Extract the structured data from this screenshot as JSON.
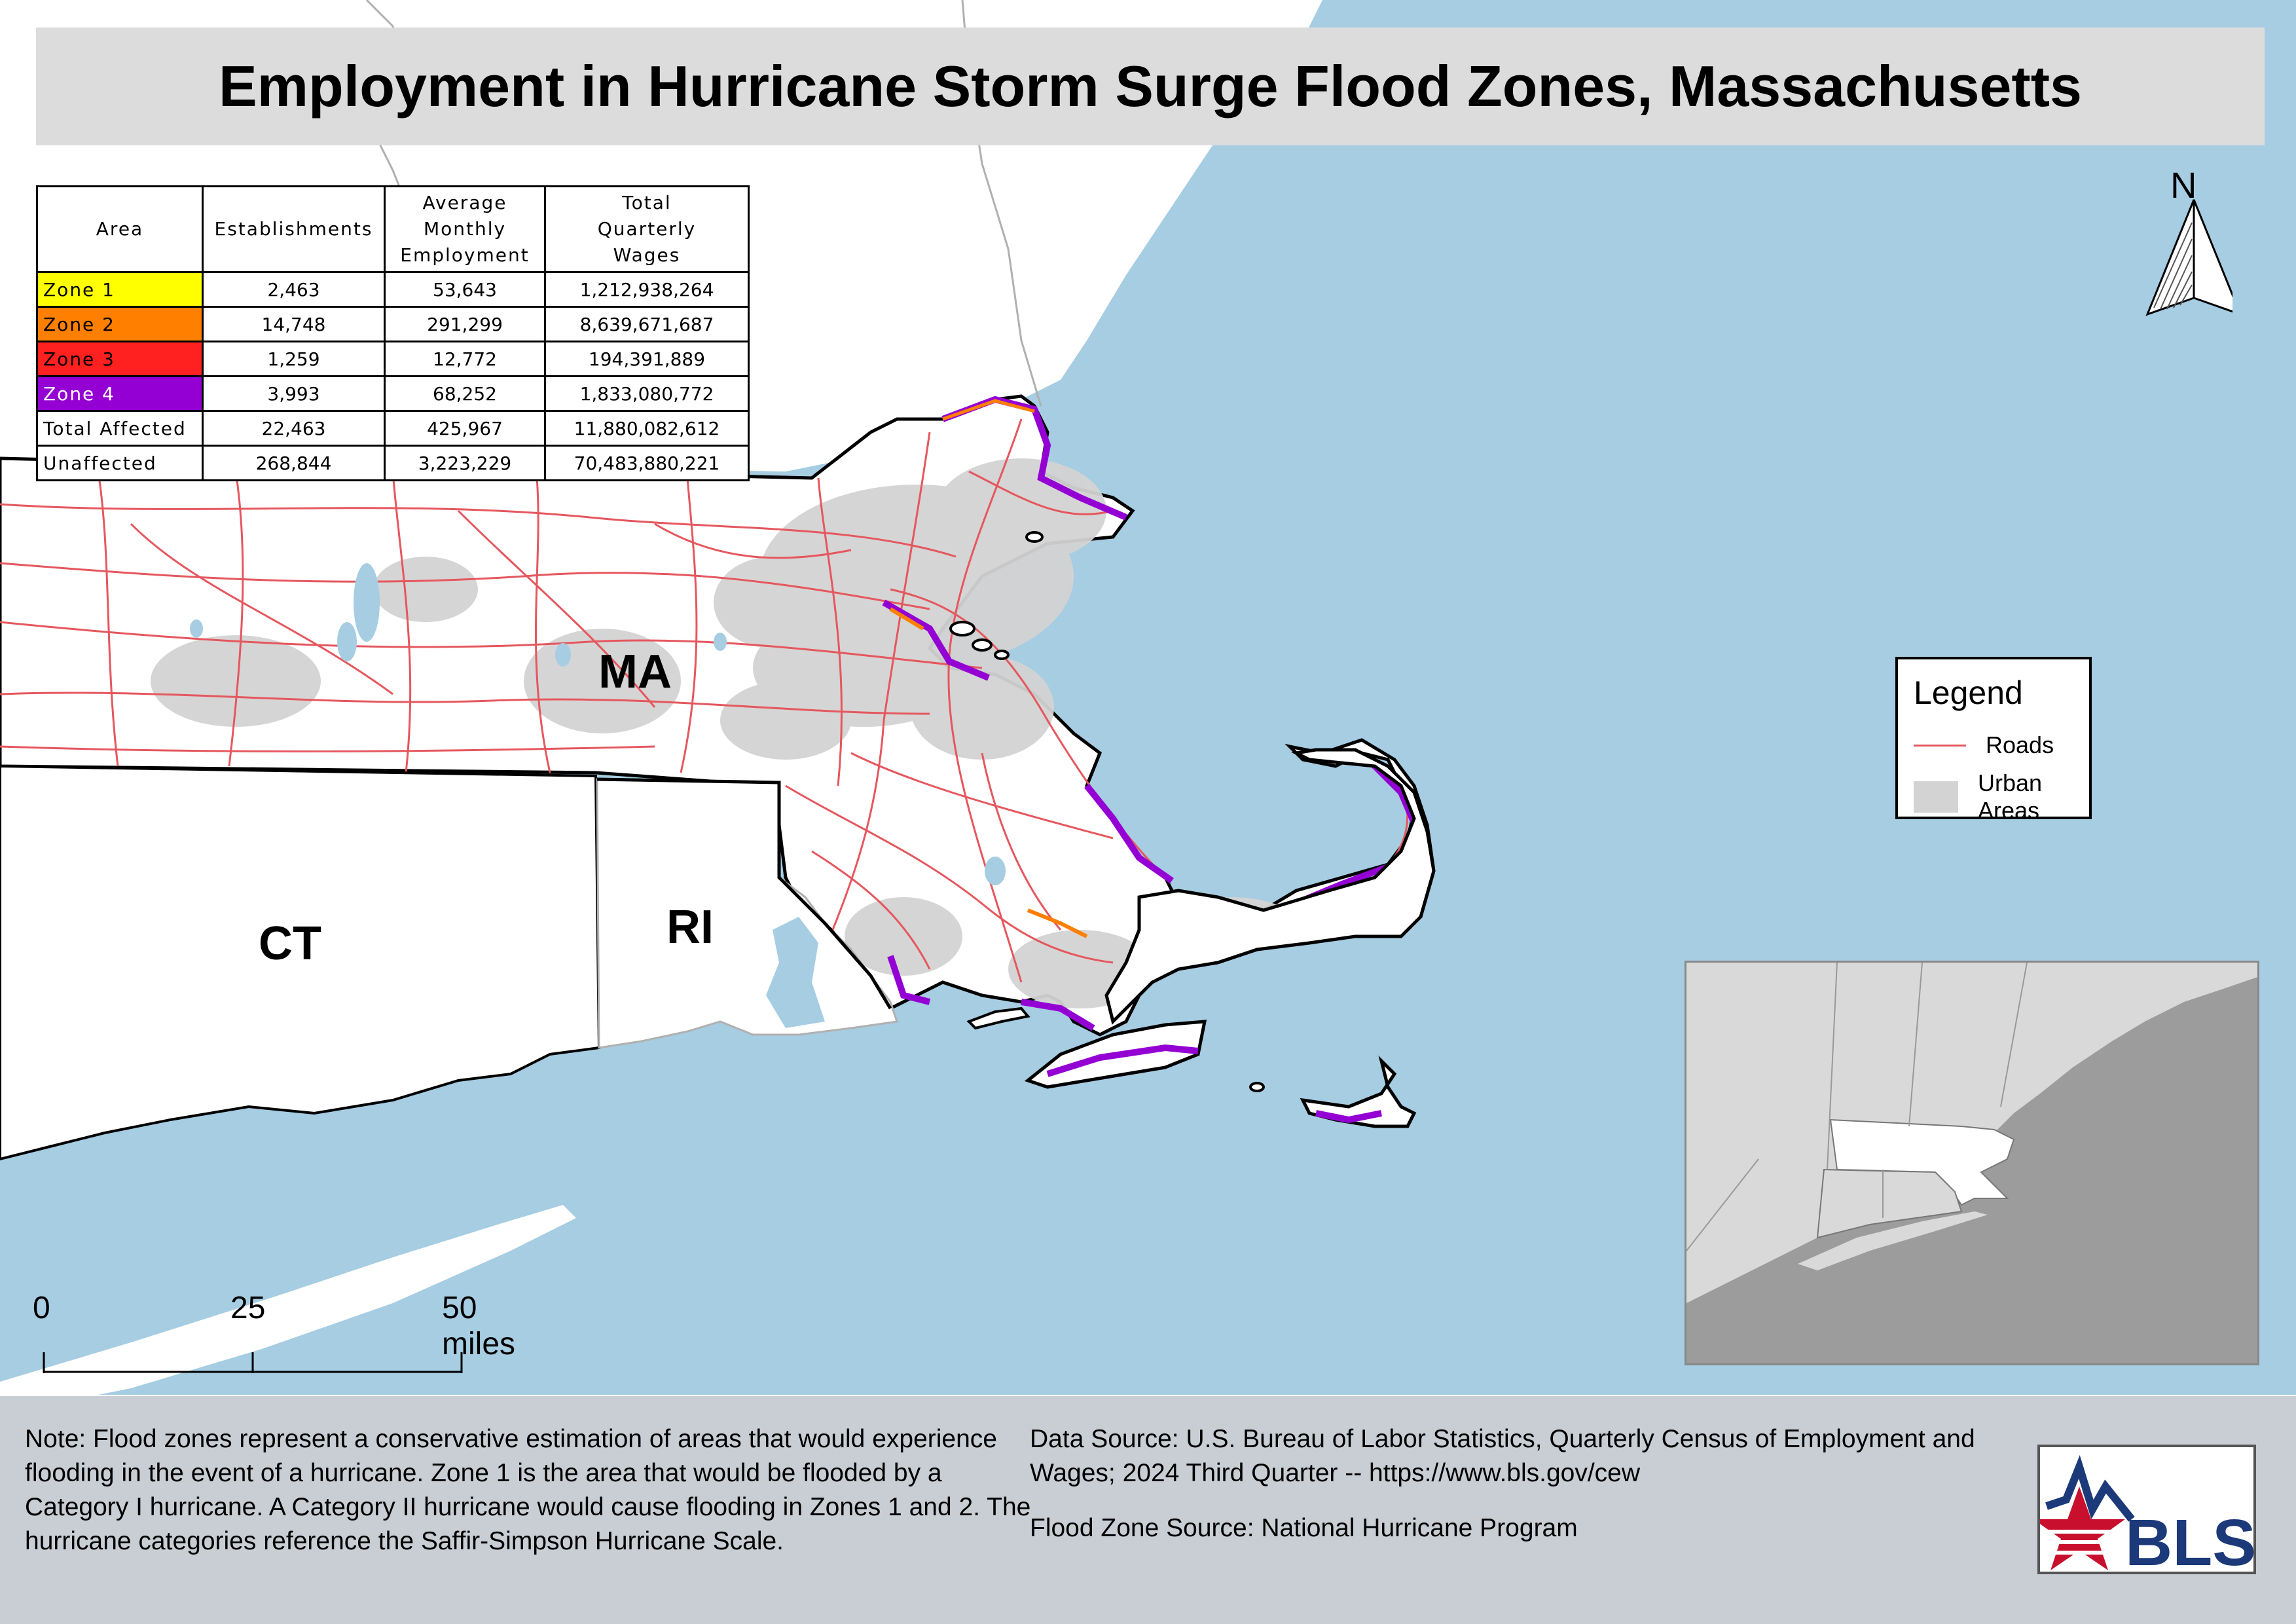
{
  "title": "Employment in Hurricane Storm Surge Flood Zones, Massachusetts",
  "table": {
    "headers": [
      "Area",
      "Establishments",
      "Average Monthly Employment",
      "Total Quarterly Wages"
    ],
    "rows": [
      {
        "area": "Zone 1",
        "color": "#ffff00",
        "textColor": "#000000",
        "establishments": "2,463",
        "employment": "53,643",
        "wages": "1,212,938,264"
      },
      {
        "area": "Zone 2",
        "color": "#ff7f00",
        "textColor": "#000000",
        "establishments": "14,748",
        "employment": "291,299",
        "wages": "8,639,671,687"
      },
      {
        "area": "Zone 3",
        "color": "#ff2020",
        "textColor": "#000000",
        "establishments": "1,259",
        "employment": "12,772",
        "wages": "194,391,889"
      },
      {
        "area": "Zone 4",
        "color": "#9400d3",
        "textColor": "#ffffff",
        "establishments": "3,993",
        "employment": "68,252",
        "wages": "1,833,080,772"
      },
      {
        "area": "Total Affected",
        "color": "#ffffff",
        "textColor": "#000000",
        "establishments": "22,463",
        "employment": "425,967",
        "wages": "11,880,082,612"
      },
      {
        "area": "Unaffected",
        "color": "#ffffff",
        "textColor": "#000000",
        "establishments": "268,844",
        "employment": "3,223,229",
        "wages": "70,483,880,221"
      }
    ]
  },
  "labels": {
    "ma": "MA",
    "ct": "CT",
    "ri": "RI"
  },
  "north": "N",
  "legend": {
    "title": "Legend",
    "roads": "Roads",
    "urban": "Urban Areas"
  },
  "scale": {
    "zero": "0",
    "mid": "25",
    "end": "50 miles"
  },
  "note": "Note: Flood zones represent a conservative estimation of areas that would experience flooding in the event of a hurricane. Zone 1 is the area that would be flooded by a Category I hurricane. A Category II hurricane would cause flooding in Zones 1 and 2. The hurricane categories reference the Saffir-Simpson Hurricane Scale.",
  "source": {
    "data": "Data Source: U.S. Bureau of Labor Statistics, Quarterly Census of Employment and Wages; 2024 Third Quarter -- https://www.bls.gov/cew",
    "flood": "Flood Zone Source: National Hurricane Program"
  },
  "logo_text": "BLS",
  "colors": {
    "water": "#a6cde2",
    "land": "#ffffff",
    "urban": "#d3d3d3",
    "road": "#e5575e",
    "border": "#000000",
    "footer": "#c9ced4",
    "inset_land": "#d9d9d9",
    "inset_water": "#9c9c9c"
  }
}
